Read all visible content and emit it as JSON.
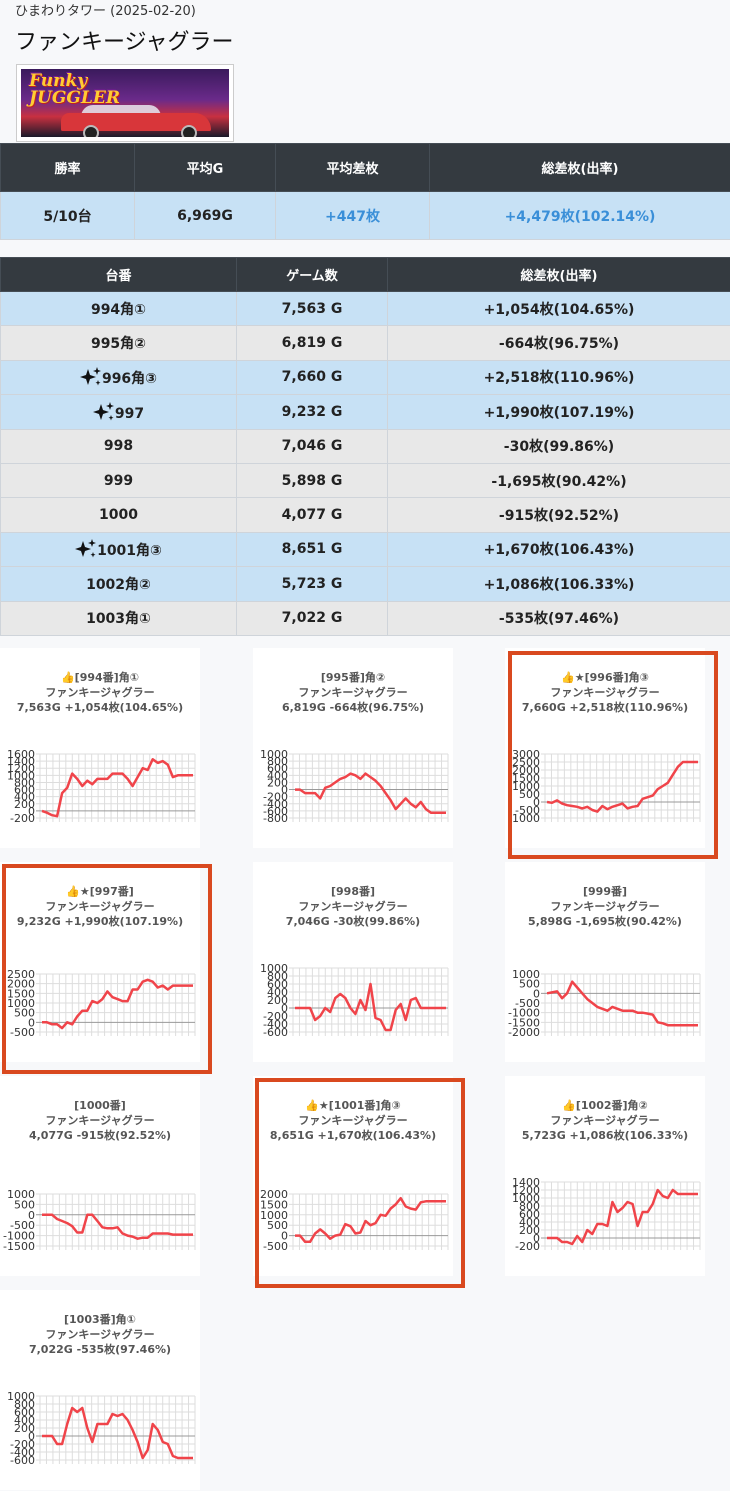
{
  "header": {
    "subtitle": "ひまわりタワー (2025-02-20)",
    "title": "ファンキージャグラー",
    "logo_text_1": "Funky",
    "logo_text_2": "JUGGLER"
  },
  "summary": {
    "headers": [
      "勝率",
      "平均G",
      "平均差枚",
      "総差枚(出率)"
    ],
    "values": [
      "5/10台",
      "6,969G",
      "+447枚",
      "+4,479枚(102.14%)"
    ]
  },
  "machines": {
    "headers": [
      "台番",
      "ゲーム数",
      "総差枚(出率)"
    ],
    "rows": [
      {
        "id": "994角①",
        "games": "7,563 G",
        "diff": "+1,054枚(104.65%)",
        "sparkle": false,
        "positive": true
      },
      {
        "id": "995角②",
        "games": "6,819 G",
        "diff": "-664枚(96.75%)",
        "sparkle": false,
        "positive": false
      },
      {
        "id": "996角③",
        "games": "7,660 G",
        "diff": "+2,518枚(110.96%)",
        "sparkle": true,
        "positive": true
      },
      {
        "id": "997",
        "games": "9,232 G",
        "diff": "+1,990枚(107.19%)",
        "sparkle": true,
        "positive": true
      },
      {
        "id": "998",
        "games": "7,046 G",
        "diff": "-30枚(99.86%)",
        "sparkle": false,
        "positive": false
      },
      {
        "id": "999",
        "games": "5,898 G",
        "diff": "-1,695枚(90.42%)",
        "sparkle": false,
        "positive": false
      },
      {
        "id": "1000",
        "games": "4,077 G",
        "diff": "-915枚(92.52%)",
        "sparkle": false,
        "positive": false
      },
      {
        "id": "1001角③",
        "games": "8,651 G",
        "diff": "+1,670枚(106.43%)",
        "sparkle": true,
        "positive": true
      },
      {
        "id": "1002角②",
        "games": "5,723 G",
        "diff": "+1,086枚(106.33%)",
        "sparkle": false,
        "positive": true
      },
      {
        "id": "1003角①",
        "games": "7,022 G",
        "diff": "-535枚(97.46%)",
        "sparkle": false,
        "positive": false
      }
    ]
  },
  "colors": {
    "line": "#f0444a",
    "highlight": "#d9491f",
    "header_bg": "#343a40",
    "row_plus": "#c7e1f5",
    "row_minus": "#e8e8e8",
    "accent_text": "#3a8fd8"
  },
  "icons": {
    "sparkle": "sparkle-icon",
    "thumb": "thumbs-up-icon"
  },
  "chart_data": [
    {
      "type": "line",
      "title_1": "👍[994番]角①",
      "title_2": "ファンキージャグラー",
      "title_3": "7,563G +1,054枚(104.65%)",
      "ticks": [
        1600,
        1400,
        1200,
        1000,
        800,
        600,
        400,
        200,
        0,
        -200
      ],
      "ylim": [
        -200,
        1600
      ],
      "highlight": false,
      "y": [
        0,
        -50,
        -120,
        -150,
        500,
        650,
        1050,
        900,
        700,
        850,
        750,
        900,
        900,
        900,
        1050,
        1050,
        1050,
        900,
        700,
        950,
        1200,
        1150,
        1450,
        1350,
        1400,
        1300,
        950,
        1000,
        1000,
        1000,
        1000
      ]
    },
    {
      "type": "line",
      "title_1": "[995番]角②",
      "title_2": "ファンキージャグラー",
      "title_3": "6,819G -664枚(96.75%)",
      "ticks": [
        1000,
        800,
        600,
        400,
        200,
        0,
        -200,
        -400,
        -600,
        -800
      ],
      "ylim": [
        -800,
        1000
      ],
      "highlight": false,
      "y": [
        0,
        0,
        -100,
        -100,
        -100,
        -250,
        50,
        100,
        200,
        300,
        350,
        450,
        400,
        300,
        450,
        350,
        250,
        100,
        -100,
        -300,
        -550,
        -400,
        -250,
        -400,
        -500,
        -350,
        -550,
        -650,
        -650,
        -650,
        -650
      ]
    },
    {
      "type": "line",
      "title_1": "👍★[996番]角③",
      "title_2": "ファンキージャグラー",
      "title_3": "7,660G +2,518枚(110.96%)",
      "ticks": [
        3000,
        2500,
        2000,
        1500,
        1000,
        500,
        0,
        -500,
        -1000
      ],
      "ylim": [
        -1000,
        3000
      ],
      "highlight": true,
      "y": [
        0,
        -50,
        100,
        -100,
        -200,
        -250,
        -300,
        -400,
        -300,
        -500,
        -600,
        -250,
        -450,
        -300,
        -200,
        -100,
        -400,
        -300,
        -250,
        200,
        300,
        400,
        800,
        1000,
        1200,
        1700,
        2200,
        2500,
        2500,
        2500,
        2500
      ]
    },
    {
      "type": "line",
      "title_1": "👍★[997番]",
      "title_2": "ファンキージャグラー",
      "title_3": "9,232G +1,990枚(107.19%)",
      "ticks": [
        2500,
        2000,
        1500,
        1000,
        500,
        0,
        -500
      ],
      "ylim": [
        -500,
        2500
      ],
      "highlight": true,
      "y": [
        0,
        0,
        -100,
        -100,
        -300,
        0,
        -100,
        300,
        600,
        600,
        1100,
        1000,
        1200,
        1600,
        1300,
        1200,
        1100,
        1100,
        1700,
        1700,
        2100,
        2200,
        2100,
        1800,
        1900,
        1700,
        1900,
        1900,
        1900,
        1900,
        1900
      ]
    },
    {
      "type": "line",
      "title_1": "[998番]",
      "title_2": "ファンキージャグラー",
      "title_3": "7,046G -30枚(99.86%)",
      "ticks": [
        1000,
        800,
        600,
        400,
        200,
        0,
        -200,
        -400,
        -600
      ],
      "ylim": [
        -600,
        1000
      ],
      "highlight": false,
      "y": [
        0,
        0,
        0,
        0,
        -300,
        -200,
        0,
        -100,
        250,
        350,
        250,
        0,
        -150,
        200,
        -50,
        600,
        -250,
        -300,
        -550,
        -550,
        -50,
        100,
        -300,
        200,
        250,
        0,
        0,
        0,
        0,
        0,
        0
      ]
    },
    {
      "type": "line",
      "title_1": "[999番]",
      "title_2": "ファンキージャグラー",
      "title_3": "5,898G -1,695枚(90.42%)",
      "ticks": [
        1000,
        500,
        0,
        -500,
        -1000,
        -1500,
        -2000
      ],
      "ylim": [
        -2000,
        1000
      ],
      "highlight": false,
      "y": [
        0,
        50,
        100,
        -250,
        0,
        600,
        300,
        0,
        -300,
        -500,
        -700,
        -800,
        -900,
        -700,
        -800,
        -900,
        -900,
        -900,
        -1000,
        -1000,
        -1050,
        -1100,
        -1500,
        -1550,
        -1650,
        -1650,
        -1650,
        -1650,
        -1650,
        -1650,
        -1650
      ]
    },
    {
      "type": "line",
      "title_1": "[1000番]",
      "title_2": "ファンキージャグラー",
      "title_3": "4,077G -915枚(92.52%)",
      "ticks": [
        1000,
        500,
        0,
        -500,
        -1000,
        -1500
      ],
      "ylim": [
        -1500,
        1000
      ],
      "highlight": false,
      "y": [
        0,
        0,
        0,
        -200,
        -300,
        -400,
        -550,
        -850,
        -850,
        0,
        0,
        -300,
        -600,
        -650,
        -650,
        -600,
        -900,
        -1000,
        -1050,
        -1150,
        -1100,
        -1100,
        -900,
        -900,
        -900,
        -900,
        -950,
        -950,
        -950,
        -950,
        -950
      ]
    },
    {
      "type": "line",
      "title_1": "👍★[1001番]角③",
      "title_2": "ファンキージャグラー",
      "title_3": "8,651G +1,670枚(106.43%)",
      "ticks": [
        2000,
        1500,
        1000,
        500,
        0,
        -500
      ],
      "ylim": [
        -500,
        2000
      ],
      "highlight": true,
      "y": [
        0,
        0,
        -300,
        -300,
        100,
        300,
        100,
        -150,
        0,
        50,
        550,
        450,
        100,
        150,
        700,
        500,
        600,
        1000,
        950,
        1300,
        1500,
        1800,
        1400,
        1300,
        1250,
        1600,
        1650,
        1650,
        1650,
        1650,
        1650
      ]
    },
    {
      "type": "line",
      "title_1": "👍[1002番]角②",
      "title_2": "ファンキージャグラー",
      "title_3": "5,723G +1,086枚(106.33%)",
      "ticks": [
        1400,
        1200,
        1000,
        800,
        600,
        400,
        200,
        0,
        -200
      ],
      "ylim": [
        -200,
        1400
      ],
      "highlight": false,
      "y": [
        0,
        0,
        0,
        -100,
        -100,
        -150,
        50,
        -100,
        200,
        100,
        350,
        350,
        300,
        900,
        650,
        750,
        900,
        850,
        300,
        650,
        650,
        850,
        1200,
        1050,
        1000,
        1200,
        1100,
        1100,
        1100,
        1100,
        1100
      ]
    },
    {
      "type": "line",
      "title_1": "[1003番]角①",
      "title_2": "ファンキージャグラー",
      "title_3": "7,022G -535枚(97.46%)",
      "ticks": [
        1000,
        800,
        600,
        400,
        200,
        0,
        -200,
        -400,
        -600
      ],
      "ylim": [
        -600,
        1000
      ],
      "highlight": false,
      "y": [
        0,
        0,
        0,
        -200,
        -200,
        300,
        700,
        600,
        700,
        200,
        -150,
        300,
        300,
        300,
        550,
        500,
        550,
        400,
        150,
        -150,
        -550,
        -350,
        300,
        150,
        -150,
        -200,
        -500,
        -550,
        -550,
        -550,
        -550
      ]
    }
  ]
}
